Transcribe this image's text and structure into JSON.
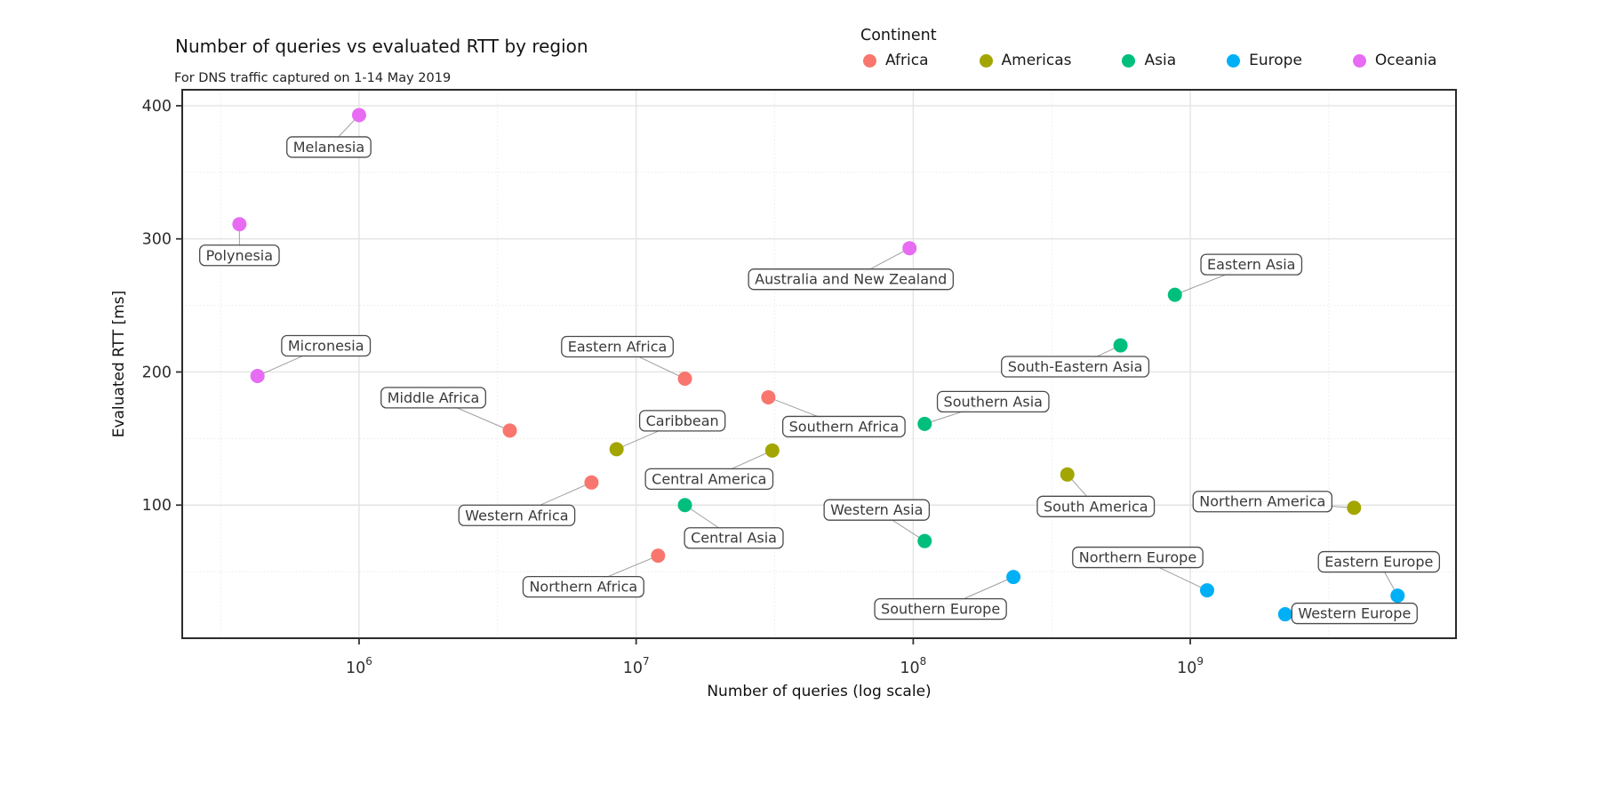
{
  "title": "Number of queries vs evaluated RTT by region",
  "subtitle": "For DNS traffic captured on 1-14 May 2019",
  "legend": {
    "title": "Continent"
  },
  "chart_data": {
    "type": "scatter",
    "title": "Number of queries vs evaluated RTT by region",
    "subtitle": "For DNS traffic captured on 1-14 May 2019",
    "xlabel": "Number of queries (log scale)",
    "ylabel": "Evaluated RTT [ms]",
    "x_scale": "log10",
    "xlim": [
      230000,
      9100000000
    ],
    "ylim": [
      0,
      412
    ],
    "x_ticks": [
      1000000,
      10000000,
      100000000,
      1000000000
    ],
    "x_tick_base": "10",
    "x_tick_exponents": [
      "6",
      "7",
      "8",
      "9"
    ],
    "x_minor_ticks": [
      316228,
      3162278,
      31622777,
      316227766,
      3162277660
    ],
    "y_ticks": [
      100,
      200,
      300,
      400
    ],
    "y_tick_labels": [
      "100",
      "200",
      "300",
      "400"
    ],
    "y_minor_ticks": [
      50,
      150,
      250,
      350
    ],
    "grid": true,
    "legend_position": "top-right",
    "series": [
      {
        "name": "Africa",
        "color": "#F8766D",
        "points": [
          {
            "region": "Eastern Africa",
            "queries": 15000000,
            "rtt": 195,
            "label_dx": -76,
            "label_dy": -36
          },
          {
            "region": "Middle Africa",
            "queries": 3500000,
            "rtt": 156,
            "label_dx": -86,
            "label_dy": -37
          },
          {
            "region": "Southern Africa",
            "queries": 30000000,
            "rtt": 181,
            "label_dx": 85,
            "label_dy": 33
          },
          {
            "region": "Western Africa",
            "queries": 6900000,
            "rtt": 117,
            "label_dx": -84,
            "label_dy": 37
          },
          {
            "region": "Northern Africa",
            "queries": 12000000,
            "rtt": 62,
            "label_dx": -84,
            "label_dy": 35
          }
        ]
      },
      {
        "name": "Americas",
        "color": "#A3A500",
        "points": [
          {
            "region": "Caribbean",
            "queries": 8500000,
            "rtt": 142,
            "label_dx": 74,
            "label_dy": -32
          },
          {
            "region": "Central America",
            "queries": 31000000,
            "rtt": 141,
            "label_dx": -71,
            "label_dy": 32
          },
          {
            "region": "South America",
            "queries": 360000000,
            "rtt": 123,
            "label_dx": 32,
            "label_dy": 36
          },
          {
            "region": "Northern America",
            "queries": 3900000000,
            "rtt": 98,
            "label_dx": -103,
            "label_dy": -7
          }
        ]
      },
      {
        "name": "Asia",
        "color": "#00BF7D",
        "points": [
          {
            "region": "Eastern Asia",
            "queries": 880000000,
            "rtt": 258,
            "label_dx": 86,
            "label_dy": -34
          },
          {
            "region": "South-Eastern Asia",
            "queries": 560000000,
            "rtt": 220,
            "label_dx": -51,
            "label_dy": 24
          },
          {
            "region": "Southern Asia",
            "queries": 110000000,
            "rtt": 161,
            "label_dx": 77,
            "label_dy": -25
          },
          {
            "region": "Central Asia",
            "queries": 15000000,
            "rtt": 100,
            "label_dx": 55,
            "label_dy": 37
          },
          {
            "region": "Western Asia",
            "queries": 110000000,
            "rtt": 73,
            "label_dx": -54,
            "label_dy": -35
          }
        ]
      },
      {
        "name": "Europe",
        "color": "#00B0F6",
        "points": [
          {
            "region": "Northern Europe",
            "queries": 1150000000,
            "rtt": 36,
            "label_dx": -78,
            "label_dy": -37
          },
          {
            "region": "Southern Europe",
            "queries": 230000000,
            "rtt": 46,
            "label_dx": -82,
            "label_dy": 36
          },
          {
            "region": "Eastern Europe",
            "queries": 5600000000,
            "rtt": 32,
            "label_dx": -21,
            "label_dy": -38
          },
          {
            "region": "Western Europe",
            "queries": 2200000000,
            "rtt": 18,
            "label_dx": 78,
            "label_dy": -1
          }
        ]
      },
      {
        "name": "Oceania",
        "color": "#E76BF3",
        "points": [
          {
            "region": "Melanesia",
            "queries": 1000000,
            "rtt": 393,
            "label_dx": -34,
            "label_dy": 36
          },
          {
            "region": "Polynesia",
            "queries": 370000,
            "rtt": 311,
            "label_dx": 0,
            "label_dy": 35
          },
          {
            "region": "Micronesia",
            "queries": 430000,
            "rtt": 197,
            "label_dx": 77,
            "label_dy": -34
          },
          {
            "region": "Australia and New Zealand",
            "queries": 97000000,
            "rtt": 293,
            "label_dx": -66,
            "label_dy": 35
          }
        ]
      }
    ]
  }
}
